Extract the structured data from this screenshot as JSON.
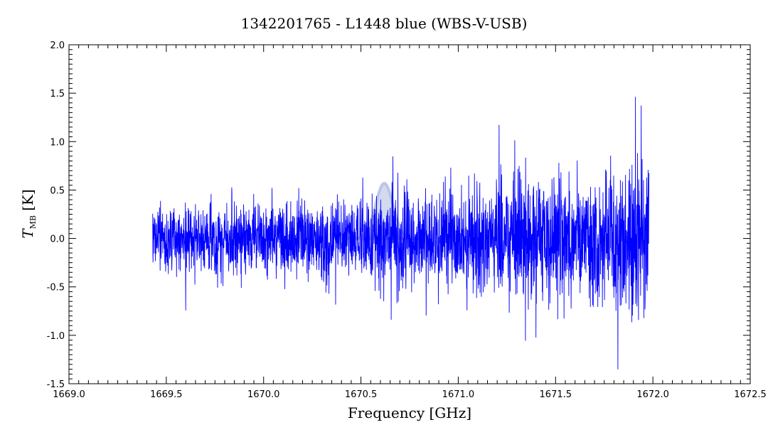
{
  "chart_data": {
    "type": "line",
    "title": "1342201765 - L1448 blue (WBS-V-USB)",
    "xlabel": "Frequency [GHz]",
    "ylabel": "T",
    "ylabel_sub": "MB",
    "ylabel_unit": "[K]",
    "xlim": [
      1669.0,
      1672.5
    ],
    "ylim": [
      -1.5,
      2.0
    ],
    "x_ticks": [
      1669.0,
      1669.5,
      1670.0,
      1670.5,
      1671.0,
      1671.5,
      1672.0,
      1672.5
    ],
    "x_tick_labels": [
      "1669.0",
      "1669.5",
      "1670.0",
      "1670.5",
      "1671.0",
      "1671.5",
      "1672.0",
      "1672.5"
    ],
    "y_ticks": [
      -1.5,
      -1.0,
      -0.5,
      0.0,
      0.5,
      1.0,
      1.5,
      2.0
    ],
    "y_tick_labels": [
      "-1.5",
      "-1.0",
      "-0.5",
      "0.0",
      "0.5",
      "1.0",
      "1.5",
      "2.0"
    ],
    "grid": false,
    "series": [
      {
        "color": "#0000ff",
        "x_range": [
          1669.43,
          1671.98
        ],
        "noise_rms_start": 0.17,
        "noise_rms_end": 0.42,
        "notable_points": [
          {
            "x": 1669.6,
            "y": -0.74
          },
          {
            "x": 1670.37,
            "y": -0.68
          },
          {
            "x": 1671.21,
            "y": 1.17
          },
          {
            "x": 1671.82,
            "y": -1.35
          },
          {
            "x": 1671.91,
            "y": 1.46
          },
          {
            "x": 1671.94,
            "y": 1.37
          }
        ]
      }
    ],
    "highlight": {
      "type": "gaussian",
      "color": "#b0bce0",
      "center": 1670.62,
      "amplitude": 0.57,
      "sigma": 0.045
    }
  }
}
